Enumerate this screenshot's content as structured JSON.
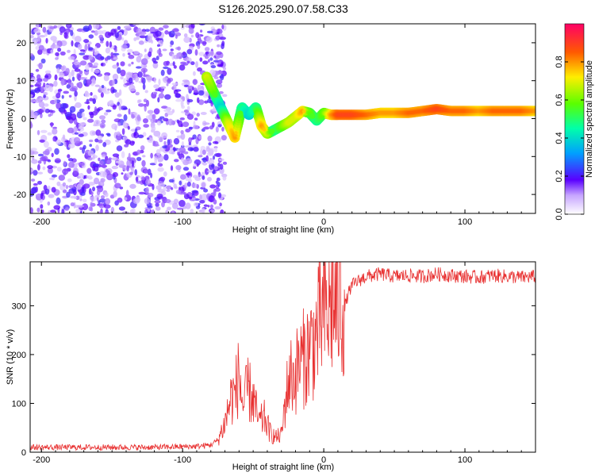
{
  "title": "S126.2025.290.07.58.C33",
  "chart_data": [
    {
      "type": "heatmap",
      "name": "spectrogram",
      "xlabel": "Height of straight line (km)",
      "ylabel": "Frequency (Hz)",
      "xlim": [
        -208,
        150
      ],
      "ylim": [
        -25,
        25
      ],
      "xticks": [
        "-200",
        "-100",
        "0",
        "100"
      ],
      "yticks": [
        "20",
        "10",
        "0",
        "-10",
        "-20"
      ],
      "noise_region_x": [
        -208,
        -80
      ],
      "signal_trace": {
        "x": [
          -83,
          -78,
          -73,
          -68,
          -63,
          -58,
          -53,
          -48,
          -44,
          -40,
          -35,
          -30,
          -25,
          -20,
          -15,
          -10,
          -5,
          0,
          5,
          10,
          20,
          30,
          40,
          50,
          60,
          70,
          80,
          90,
          100,
          110,
          120,
          130,
          140,
          150
        ],
        "y": [
          11,
          7,
          3,
          -1,
          -5,
          3,
          1,
          3,
          -2,
          -4,
          -3,
          -2,
          -1,
          0.5,
          2,
          1.5,
          -0.5,
          1.5,
          1,
          1,
          1,
          1,
          1.5,
          1.5,
          1.5,
          2,
          2.5,
          2,
          2,
          2,
          2,
          2,
          2,
          2
        ],
        "amplitude": [
          0.7,
          0.6,
          0.4,
          0.7,
          0.8,
          0.5,
          0.4,
          0.5,
          0.8,
          0.7,
          0.5,
          0.6,
          0.7,
          0.7,
          0.8,
          0.6,
          0.5,
          0.6,
          0.8,
          0.9,
          0.9,
          0.85,
          0.8,
          0.8,
          0.85,
          0.85,
          0.9,
          0.85,
          0.85,
          0.8,
          0.85,
          0.85,
          0.85,
          0.8
        ]
      },
      "colorbar": {
        "label": "Normalized spectral amplitude",
        "range": [
          0.0,
          1.0
        ],
        "ticks": [
          "0.0",
          "0.2",
          "0.4",
          "0.6",
          "0.8"
        ]
      }
    },
    {
      "type": "line",
      "name": "snr",
      "xlabel": "Height of straight line (km)",
      "ylabel": "SNR (10 * v/v)",
      "xlim": [
        -208,
        150
      ],
      "ylim": [
        0,
        390
      ],
      "xticks": [
        "-200",
        "-100",
        "0",
        "100"
      ],
      "yticks": [
        "0",
        "100",
        "200",
        "300"
      ],
      "series": [
        {
          "name": "SNR",
          "color": "#e83030",
          "x": [
            -208,
            -180,
            -150,
            -120,
            -90,
            -80,
            -75,
            -70,
            -66,
            -63,
            -60,
            -57,
            -54,
            -50,
            -46,
            -42,
            -38,
            -34,
            -30,
            -27,
            -24,
            -21,
            -18,
            -15,
            -12,
            -9,
            -6,
            -3,
            0,
            3,
            6,
            9,
            12,
            15,
            18,
            21,
            24,
            27,
            30,
            35,
            40,
            50,
            60,
            70,
            80,
            90,
            100,
            110,
            120,
            130,
            140,
            150
          ],
          "y": [
            10,
            10,
            10,
            10,
            12,
            15,
            25,
            60,
            110,
            120,
            160,
            90,
            130,
            110,
            60,
            70,
            40,
            30,
            35,
            110,
            160,
            150,
            180,
            190,
            200,
            220,
            230,
            260,
            290,
            280,
            310,
            300,
            320,
            300,
            330,
            345,
            350,
            355,
            360,
            362,
            365,
            360,
            362,
            360,
            365,
            362,
            360,
            358,
            362,
            360,
            358,
            360
          ]
        }
      ]
    }
  ]
}
